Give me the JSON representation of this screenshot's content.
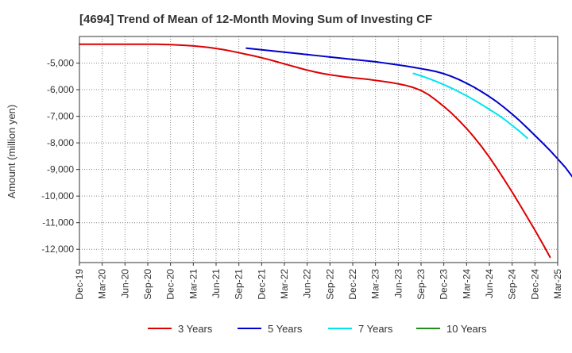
{
  "chart_data": {
    "type": "line",
    "title": "[4694]  Trend of Mean of 12-Month Moving Sum of Investing CF",
    "xlabel": "",
    "ylabel": "Amount (million yen)",
    "ylim": [
      -12500,
      -4000
    ],
    "yticks": [
      -5000,
      -6000,
      -7000,
      -8000,
      -9000,
      -10000,
      -11000,
      -12000
    ],
    "ytick_labels": [
      "-5,000",
      "-6,000",
      "-7,000",
      "-8,000",
      "-9,000",
      "-10,000",
      "-11,000",
      "-12,000"
    ],
    "x_tick_labels": [
      "Dec-19",
      "Mar-20",
      "Jun-20",
      "Sep-20",
      "Dec-20",
      "Mar-21",
      "Jun-21",
      "Sep-21",
      "Dec-21",
      "Mar-22",
      "Jun-22",
      "Sep-22",
      "Dec-22",
      "Mar-23",
      "Jun-23",
      "Sep-23",
      "Dec-23",
      "Mar-24",
      "Jun-24",
      "Sep-24",
      "Dec-24",
      "Mar-25"
    ],
    "grid": true,
    "legend_position": "bottom",
    "series": [
      {
        "name": "3 Years",
        "color": "#dd0000",
        "x_start": "Dec-19",
        "values": [
          -4290,
          -4290,
          -4290,
          -4290,
          -4290,
          -4290,
          -4290,
          -4290,
          -4290,
          -4290,
          -4292,
          -4297,
          -4305,
          -4320,
          -4335,
          -4355,
          -4380,
          -4410,
          -4450,
          -4495,
          -4550,
          -4610,
          -4670,
          -4730,
          -4800,
          -4870,
          -4950,
          -5030,
          -5110,
          -5190,
          -5265,
          -5330,
          -5390,
          -5440,
          -5480,
          -5520,
          -5550,
          -5580,
          -5610,
          -5650,
          -5690,
          -5730,
          -5780,
          -5840,
          -5920,
          -6030,
          -6190,
          -6400,
          -6630,
          -6880,
          -7160,
          -7460,
          -7790,
          -8150,
          -8540,
          -8960,
          -9400,
          -9850,
          -10320,
          -10800,
          -11280,
          -11780,
          -12300
        ]
      },
      {
        "name": "5 Years",
        "color": "#0000cc",
        "x_start": "Oct-21",
        "values": [
          -4440,
          -4470,
          -4500,
          -4530,
          -4560,
          -4590,
          -4620,
          -4650,
          -4680,
          -4710,
          -4740,
          -4770,
          -4800,
          -4830,
          -4860,
          -4890,
          -4920,
          -4950,
          -4990,
          -5030,
          -5070,
          -5110,
          -5160,
          -5210,
          -5260,
          -5320,
          -5400,
          -5500,
          -5620,
          -5760,
          -5910,
          -6080,
          -6260,
          -6460,
          -6680,
          -6920,
          -7170,
          -7440,
          -7720,
          -8000,
          -8290,
          -8600,
          -8920,
          -9300
        ]
      },
      {
        "name": "7 Years",
        "color": "#00e5ee",
        "x_start": "Aug-23",
        "values": [
          -5390,
          -5480,
          -5580,
          -5690,
          -5810,
          -5940,
          -6080,
          -6230,
          -6390,
          -6560,
          -6740,
          -6920,
          -7120,
          -7340,
          -7570,
          -7820
        ]
      },
      {
        "name": "10 Years",
        "color": "#228b22",
        "x_start": "Aug-23",
        "values": []
      }
    ]
  }
}
